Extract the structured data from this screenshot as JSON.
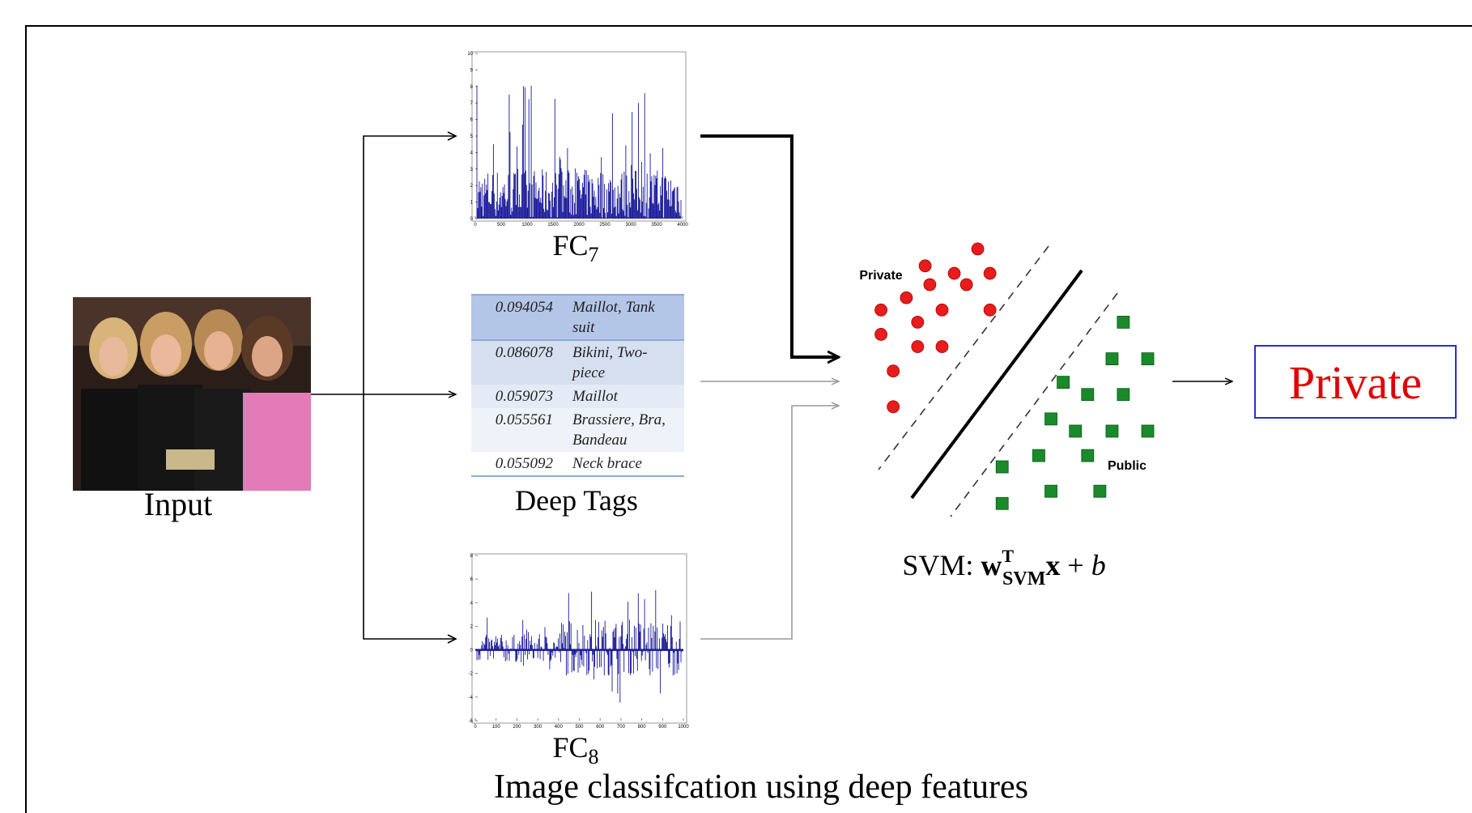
{
  "input": {
    "label": "Input"
  },
  "fc7": {
    "label": "FC",
    "subscript": "7",
    "yticks": [
      0,
      1,
      2,
      3,
      4,
      5,
      6,
      7,
      8,
      9,
      10
    ],
    "xticks": [
      0,
      500,
      1000,
      1500,
      2000,
      2500,
      3000,
      3500,
      4000
    ]
  },
  "deep_tags": {
    "label": "Deep Tags",
    "rows": [
      [
        "0.094054",
        "Maillot, Tank suit"
      ],
      [
        "0.086078",
        "Bikini, Two-piece"
      ],
      [
        "0.059073",
        "Maillot"
      ],
      [
        "0.055561",
        "Brassiere, Bra, Bandeau"
      ],
      [
        "0.055092",
        "Neck brace"
      ]
    ]
  },
  "fc8": {
    "label": "FC",
    "subscript": "8",
    "yticks": [
      -6,
      -4,
      -2,
      0,
      2,
      4,
      6,
      8
    ],
    "xticks": [
      0,
      100,
      200,
      300,
      400,
      500,
      600,
      700,
      800,
      900,
      1000
    ]
  },
  "svm": {
    "private_label": "Private",
    "public_label": "Public",
    "formula": {
      "prefix": "SVM: ",
      "w": "w",
      "sup": "T",
      "sub": "SVM",
      "x": "x",
      "op": " + ",
      "b": "b"
    }
  },
  "output": {
    "label": "Private"
  },
  "caption": "Image classifcation using deep features"
}
